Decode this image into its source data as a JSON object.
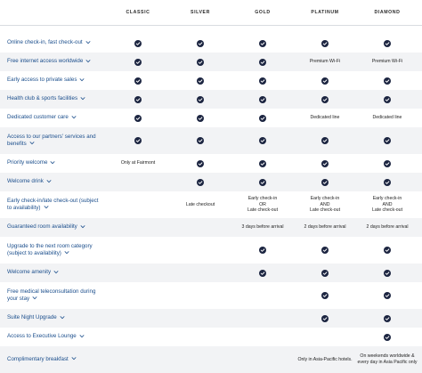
{
  "tiers": [
    "CLASSIC",
    "SILVER",
    "GOLD",
    "PLATINUM",
    "DIAMOND"
  ],
  "rows": [
    {
      "label": "Online check-in, fast check-out",
      "cells": [
        "check",
        "check",
        "check",
        "check",
        "check"
      ]
    },
    {
      "label": "Free internet access worldwide",
      "cells": [
        "check",
        "check",
        "check",
        "Premium Wi-Fi",
        "Premium Wi-Fi"
      ]
    },
    {
      "label": "Early access to private sales",
      "cells": [
        "check",
        "check",
        "check",
        "check",
        "check"
      ]
    },
    {
      "label": "Health club & sports facilities",
      "cells": [
        "check",
        "check",
        "check",
        "check",
        "check"
      ]
    },
    {
      "label": "Dedicated customer care",
      "cells": [
        "check",
        "check",
        "check",
        "Dedicated line",
        "Dedicated line"
      ]
    },
    {
      "label": "Access to our partners' services and benefits",
      "cells": [
        "check",
        "check",
        "check",
        "check",
        "check"
      ]
    },
    {
      "label": "Priority welcome",
      "cells": [
        "Only at Fairmont",
        "check",
        "check",
        "check",
        "check"
      ]
    },
    {
      "label": "Welcome drink",
      "cells": [
        "",
        "check",
        "check",
        "check",
        "check"
      ]
    },
    {
      "label": "Early check-in/late check-out (subject to availability)",
      "cells": [
        "",
        "Late checkout",
        "Early check-in\nOR\nLate check-out",
        "Early check-in\nAND\nLate check-out",
        "Early check-in\nAND\nLate check-out"
      ]
    },
    {
      "label": "Guaranteed room availability",
      "cells": [
        "",
        "",
        "3 days before arrival",
        "2 days before arrival",
        "2 days before arrival"
      ]
    },
    {
      "label": "Upgrade to the next room category (subject to availability)",
      "cells": [
        "",
        "",
        "check",
        "check",
        "check"
      ]
    },
    {
      "label": "Welcome amenity",
      "cells": [
        "",
        "",
        "check",
        "check",
        "check"
      ]
    },
    {
      "label": "Free medical teleconsultation during your stay",
      "cells": [
        "",
        "",
        "",
        "check",
        "check"
      ]
    },
    {
      "label": "Suite Night Upgrade",
      "cells": [
        "",
        "",
        "",
        "check",
        "check"
      ]
    },
    {
      "label": "Access to Executive Lounge",
      "cells": [
        "",
        "",
        "",
        "",
        "check"
      ]
    },
    {
      "label": "Complimentary breakfast",
      "cells": [
        "",
        "",
        "",
        "Only in Asia-Pacific hotels.",
        "On weekends worldwide & every day in Asia Pacific only"
      ]
    }
  ],
  "icons": {
    "check": "check-circle-icon",
    "expand": "chevron-down-icon"
  },
  "colors": {
    "check": "#1c2541",
    "link": "#1b4e8c",
    "alt_row": "#f2f3f5"
  }
}
